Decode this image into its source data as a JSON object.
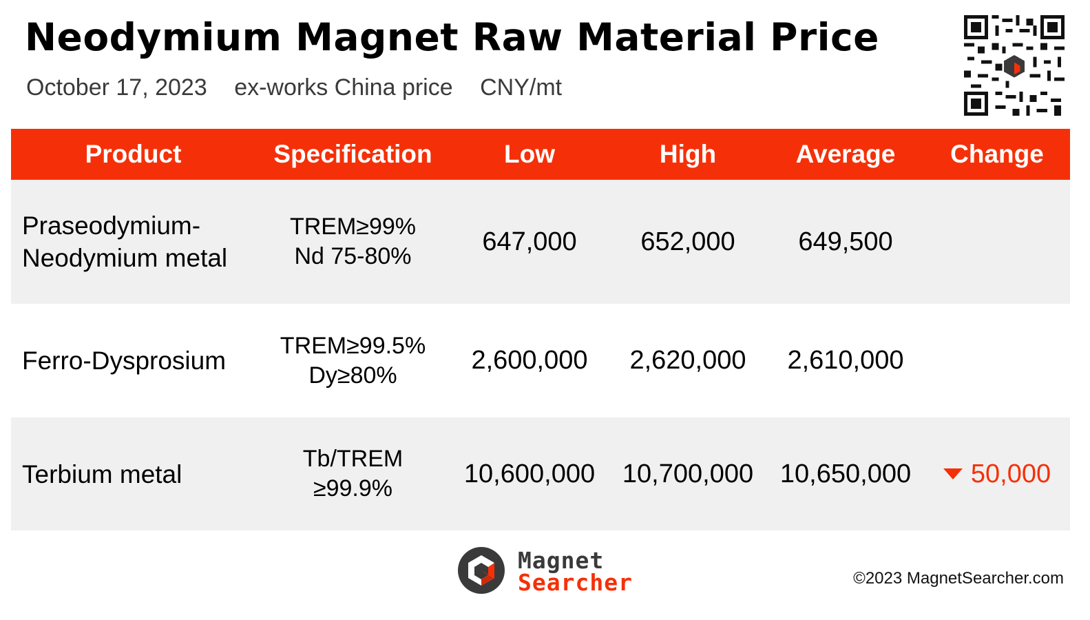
{
  "header": {
    "title": "Neodymium Magnet Raw Material Price",
    "date": "October 17, 2023",
    "price_basis": "ex-works China price",
    "unit": "CNY/mt"
  },
  "table": {
    "columns": [
      "Product",
      "Specification",
      "Low",
      "High",
      "Average",
      "Change"
    ],
    "rows": [
      {
        "product": [
          "Praseodymium-",
          "Neodymium metal"
        ],
        "spec": [
          "TREM≥99%",
          "Nd 75-80%"
        ],
        "low": "647,000",
        "high": "652,000",
        "average": "649,500",
        "change": ""
      },
      {
        "product": [
          "Ferro-Dysprosium"
        ],
        "spec": [
          "TREM≥99.5%",
          "Dy≥80%"
        ],
        "low": "2,600,000",
        "high": "2,620,000",
        "average": "2,610,000",
        "change": ""
      },
      {
        "product": [
          "Terbium metal"
        ],
        "spec": [
          "Tb/TREM",
          "≥99.9%"
        ],
        "low": "10,600,000",
        "high": "10,700,000",
        "average": "10,650,000",
        "change": "50,000",
        "change_direction": "down"
      }
    ]
  },
  "logo": {
    "line1": "Magnet",
    "line2": "Searcher"
  },
  "footer": {
    "copyright": "©2023 MagnetSearcher.com"
  },
  "colors": {
    "accent": "#f53008",
    "row_shade": "#f0f0f0",
    "logo_dark": "#3a3a3a"
  },
  "icons": {
    "qr": "qr-code-icon",
    "change_down": "triangle-down-icon"
  }
}
